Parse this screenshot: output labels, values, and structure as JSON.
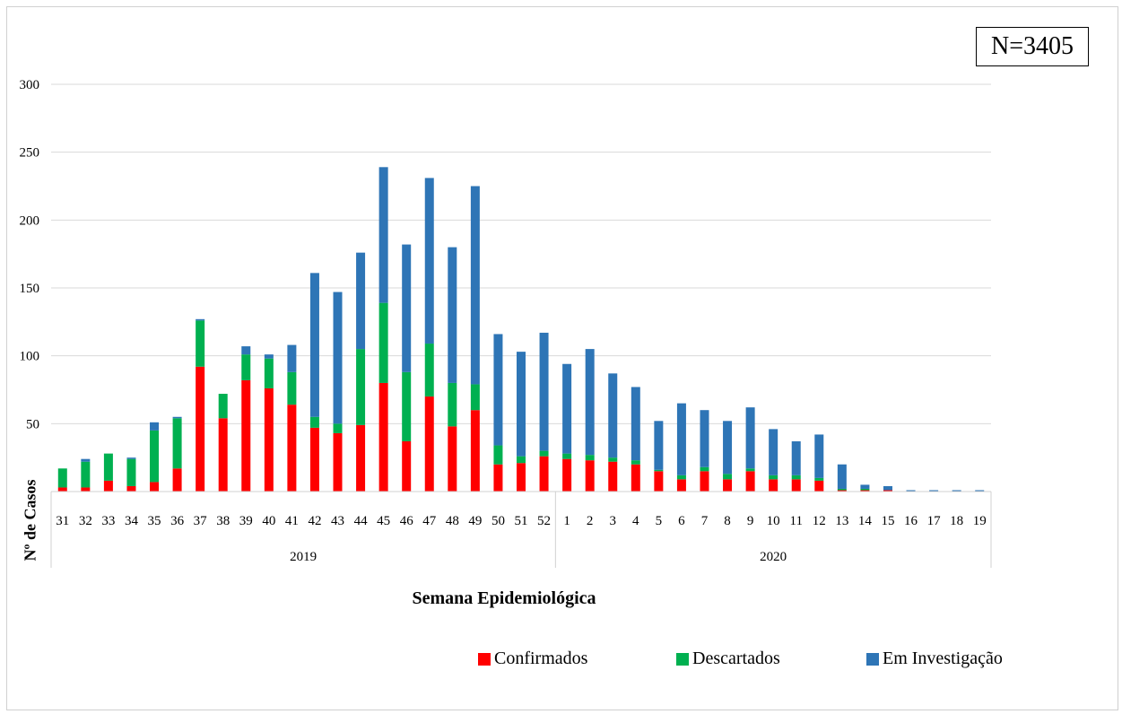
{
  "annotation": {
    "n_label": "N=3405"
  },
  "colors": {
    "confirmados": "#FF0000",
    "descartados": "#00B050",
    "investigacao": "#2E75B6"
  },
  "chart_data": {
    "type": "bar",
    "stacked": true,
    "xlabel": "Semana Epidemiológica",
    "ylabel": "Nº de Casos",
    "ylim": [
      0,
      300
    ],
    "yticks": [
      0,
      50,
      100,
      150,
      200,
      250,
      300
    ],
    "ytick_labels": [
      "",
      "50",
      "100",
      "150",
      "200",
      "250",
      "300"
    ],
    "grid": true,
    "legend_position": "bottom-right",
    "categories": [
      "31",
      "32",
      "33",
      "34",
      "35",
      "36",
      "37",
      "38",
      "39",
      "40",
      "41",
      "42",
      "43",
      "44",
      "45",
      "46",
      "47",
      "48",
      "49",
      "50",
      "51",
      "52",
      "1",
      "2",
      "3",
      "4",
      "5",
      "6",
      "7",
      "8",
      "9",
      "10",
      "11",
      "12",
      "13",
      "14",
      "15",
      "16",
      "17",
      "18",
      "19"
    ],
    "groups": [
      {
        "label": "2019",
        "count": 22
      },
      {
        "label": "2020",
        "count": 19
      }
    ],
    "series": [
      {
        "name": "Confirmados",
        "color": "#FF0000",
        "values": [
          3,
          3,
          8,
          4,
          7,
          17,
          92,
          54,
          82,
          76,
          64,
          47,
          43,
          49,
          80,
          37,
          70,
          48,
          60,
          20,
          21,
          26,
          24,
          23,
          22,
          20,
          15,
          9,
          15,
          9,
          15,
          9,
          9,
          8,
          1,
          1,
          1,
          0,
          0,
          0,
          0
        ]
      },
      {
        "name": "Descartados",
        "color": "#00B050",
        "values": [
          14,
          19,
          20,
          20,
          38,
          37,
          34,
          18,
          19,
          22,
          24,
          8,
          7,
          56,
          59,
          51,
          39,
          32,
          19,
          14,
          5,
          4,
          4,
          4,
          3,
          3,
          1,
          3,
          3,
          4,
          2,
          3,
          3,
          2,
          1,
          1,
          0,
          0,
          0,
          0,
          0
        ]
      },
      {
        "name": "Em Investigação",
        "color": "#2E75B6",
        "values": [
          0,
          2,
          0,
          1,
          6,
          1,
          1,
          0,
          6,
          3,
          20,
          106,
          97,
          71,
          100,
          94,
          122,
          100,
          146,
          82,
          77,
          87,
          66,
          78,
          62,
          54,
          36,
          53,
          42,
          39,
          45,
          34,
          25,
          32,
          18,
          3,
          3,
          1,
          1,
          1,
          1
        ]
      }
    ]
  }
}
